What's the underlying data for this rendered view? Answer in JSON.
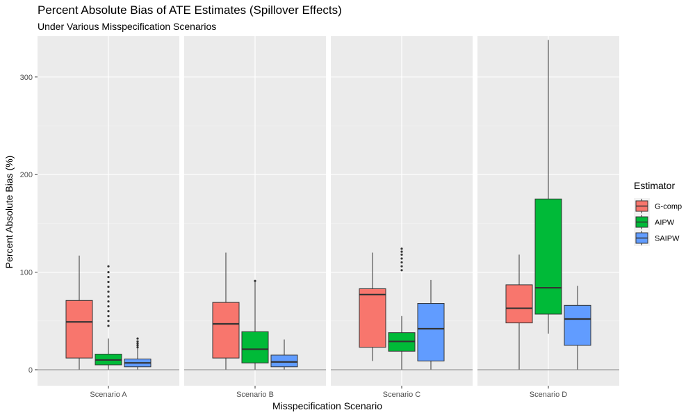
{
  "chart_data": {
    "type": "boxplot",
    "title": "Percent Absolute Bias of ATE Estimates (Spillover Effects)",
    "subtitle": "Under Various Misspecification Scenarios",
    "xlabel": "Misspecification Scenario",
    "ylabel": "Percent Absolute Bias (%)",
    "ylim": [
      -15,
      340
    ],
    "yticks": [
      0,
      100,
      200,
      300
    ],
    "reference_line": 0,
    "legend": {
      "title": "Estimator",
      "position": "right"
    },
    "estimators": [
      {
        "name": "G-comp",
        "color": "#F8766D"
      },
      {
        "name": "AIPW",
        "color": "#00BA38"
      },
      {
        "name": "SAIPW",
        "color": "#619CFF"
      }
    ],
    "panels": [
      {
        "label": "Scenario A",
        "boxes": [
          {
            "estimator": "G-comp",
            "min": 0,
            "q1": 12,
            "median": 49,
            "q3": 71,
            "max": 117,
            "outliers": []
          },
          {
            "estimator": "AIPW",
            "min": 0,
            "q1": 5,
            "median": 10,
            "q3": 16,
            "max": 32,
            "outliers": [
              45,
              50,
              55,
              60,
              65,
              70,
              75,
              80,
              85,
              90,
              95,
              100,
              106
            ]
          },
          {
            "estimator": "SAIPW",
            "min": 0,
            "q1": 3,
            "median": 7,
            "q3": 11,
            "max": 22,
            "outliers": [
              23,
              25,
              27,
              29,
              32
            ]
          }
        ]
      },
      {
        "label": "Scenario B",
        "boxes": [
          {
            "estimator": "G-comp",
            "min": 0,
            "q1": 12,
            "median": 47,
            "q3": 69,
            "max": 120,
            "outliers": []
          },
          {
            "estimator": "AIPW",
            "min": 0,
            "q1": 7,
            "median": 21,
            "q3": 39,
            "max": 90,
            "outliers": [
              91
            ]
          },
          {
            "estimator": "SAIPW",
            "min": 0,
            "q1": 3,
            "median": 8,
            "q3": 15,
            "max": 31,
            "outliers": []
          }
        ]
      },
      {
        "label": "Scenario C",
        "boxes": [
          {
            "estimator": "G-comp",
            "min": 9,
            "q1": 23,
            "median": 77,
            "q3": 83,
            "max": 120,
            "outliers": []
          },
          {
            "estimator": "AIPW",
            "min": 0,
            "q1": 19,
            "median": 29,
            "q3": 38,
            "max": 55,
            "outliers": [
              102,
              106,
              110,
              114,
              118,
              121,
              124
            ]
          },
          {
            "estimator": "SAIPW",
            "min": 0,
            "q1": 9,
            "median": 42,
            "q3": 68,
            "max": 92,
            "outliers": []
          }
        ]
      },
      {
        "label": "Scenario D",
        "boxes": [
          {
            "estimator": "G-comp",
            "min": 0,
            "q1": 48,
            "median": 63,
            "q3": 87,
            "max": 118,
            "outliers": []
          },
          {
            "estimator": "AIPW",
            "min": 37,
            "q1": 57,
            "median": 84,
            "q3": 175,
            "max": 338,
            "outliers": []
          },
          {
            "estimator": "SAIPW",
            "min": 0,
            "q1": 25,
            "median": 52,
            "q3": 66,
            "max": 86,
            "outliers": []
          }
        ]
      }
    ]
  }
}
